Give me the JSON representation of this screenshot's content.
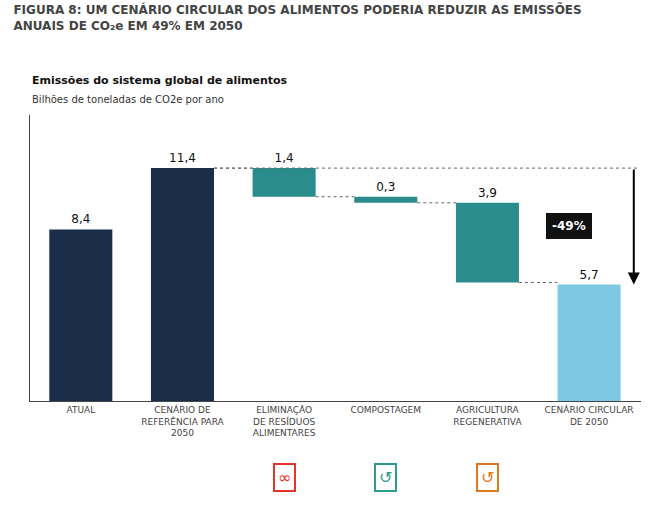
{
  "chart_data": {
    "type": "waterfall",
    "title": "FIGURA 8: UM CENÁRIO CIRCULAR DOS ALIMENTOS PODERIA REDUZIR AS EMISSÕES\nANUAIS DE CO₂e EM 49% EM 2050",
    "subtitle": "Emissões do sistema global de alimentos",
    "ylabel": "Bilhões de toneladas de CO2e por ano",
    "categories": [
      "ATUAL",
      "CENÁRIO DE\nREFERÊNCIA PARA\n2050",
      "ELIMINAÇÃO\nDE RESÍDUOS\nALIMENTARES",
      "COMPOSTAGEM",
      "AGRICULTURA\nREGENERATIVA",
      "CENÁRIO CIRCULAR\nDE 2050"
    ],
    "values": [
      8.4,
      11.4,
      1.4,
      0.3,
      3.9,
      5.7
    ],
    "bases": [
      0.0,
      0.0,
      10.0,
      9.7,
      5.8,
      0.0
    ],
    "value_labels": [
      "8,4",
      "11,4",
      "1,4",
      "0,3",
      "3,9",
      "5,7"
    ],
    "data_labels": true,
    "colors": [
      "#1a2e4a",
      "#1a2e4a",
      "#2a8c8c",
      "#2a8c8c",
      "#2a8c8c",
      "#7ec8e3"
    ],
    "ylim": [
      0,
      14.0
    ],
    "grid": false,
    "tick_labels": "x",
    "annotations": [
      {
        "text": "-49%",
        "from": "CENÁRIO DE\nREFERÊNCIA PARA\n2050",
        "to": "CENÁRIO CIRCULAR\nDE 2050"
      },
      {
        "text": "∞",
        "category": "ELIMINAÇÃO\nDE RESÍDUOS\nALIMENTARES",
        "color": "#e63329"
      },
      {
        "text": "↺",
        "category": "COMPOSTAGEM",
        "color": "#2a9d8f"
      },
      {
        "text": "↺",
        "category": "AGRICULTURA\nREGENERATIVA",
        "color": "#e07820"
      }
    ]
  }
}
